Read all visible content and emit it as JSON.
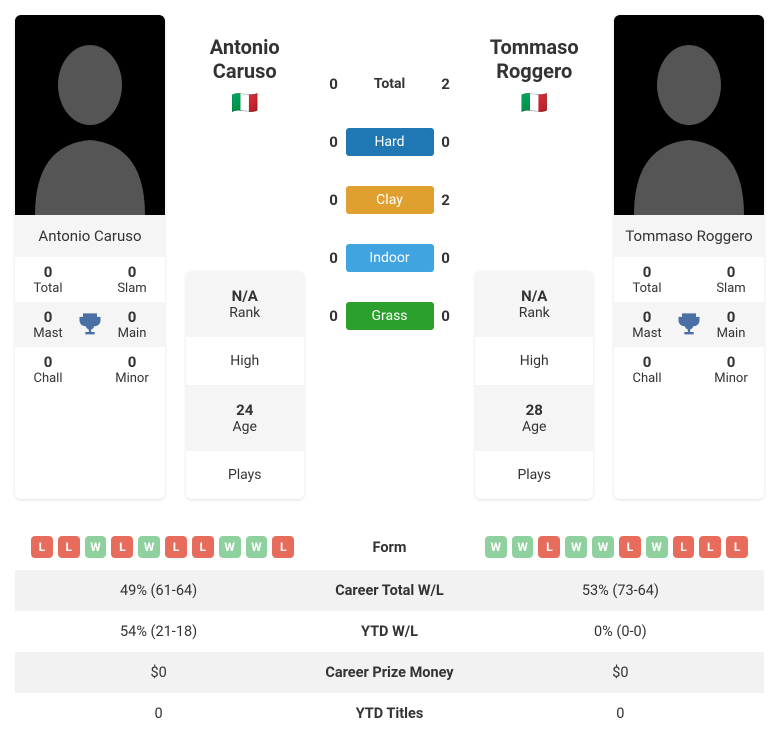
{
  "player1": {
    "name": "Antonio Caruso",
    "first": "Antonio",
    "last": "Caruso",
    "flag": "🇮🇹",
    "rank": "N/A",
    "high": "",
    "age": "24",
    "plays": "",
    "titles": {
      "total": "0",
      "slam": "0",
      "mast": "0",
      "main": "0",
      "chall": "0",
      "minor": "0"
    }
  },
  "player2": {
    "name": "Tommaso Roggero",
    "first": "Tommaso",
    "last": "Roggero",
    "flag": "🇮🇹",
    "rank": "N/A",
    "high": "",
    "age": "28",
    "plays": "",
    "titles": {
      "total": "0",
      "slam": "0",
      "mast": "0",
      "main": "0",
      "chall": "0",
      "minor": "0"
    }
  },
  "stat_labels": {
    "rank": "Rank",
    "high": "High",
    "age": "Age",
    "plays": "Plays"
  },
  "title_labels": {
    "total": "Total",
    "slam": "Slam",
    "mast": "Mast",
    "main": "Main",
    "chall": "Chall",
    "minor": "Minor"
  },
  "h2h": {
    "total": {
      "label": "Total",
      "p1": "0",
      "p2": "2",
      "color": ""
    },
    "hard": {
      "label": "Hard",
      "p1": "0",
      "p2": "0",
      "color": "#1f78b4"
    },
    "clay": {
      "label": "Clay",
      "p1": "0",
      "p2": "2",
      "color": "#e0a030"
    },
    "indoor": {
      "label": "Indoor",
      "p1": "0",
      "p2": "0",
      "color": "#3fa4e0"
    },
    "grass": {
      "label": "Grass",
      "p1": "0",
      "p2": "0",
      "color": "#2ca02c"
    }
  },
  "form": {
    "label": "Form",
    "p1": [
      "L",
      "L",
      "W",
      "L",
      "W",
      "L",
      "L",
      "W",
      "W",
      "L"
    ],
    "p2": [
      "W",
      "W",
      "L",
      "W",
      "W",
      "L",
      "W",
      "L",
      "L",
      "L"
    ],
    "win_color": "#8fd19e",
    "loss_color": "#e86c5c"
  },
  "comparison": [
    {
      "label": "Career Total W/L",
      "p1": "49% (61-64)",
      "p2": "53% (73-64)"
    },
    {
      "label": "YTD W/L",
      "p1": "54% (21-18)",
      "p2": "0% (0-0)"
    },
    {
      "label": "Career Prize Money",
      "p1": "$0",
      "p2": "$0"
    },
    {
      "label": "YTD Titles",
      "p1": "0",
      "p2": "0"
    }
  ],
  "silhouette_color": "#555555",
  "trophy_color": "#4a6fa5"
}
